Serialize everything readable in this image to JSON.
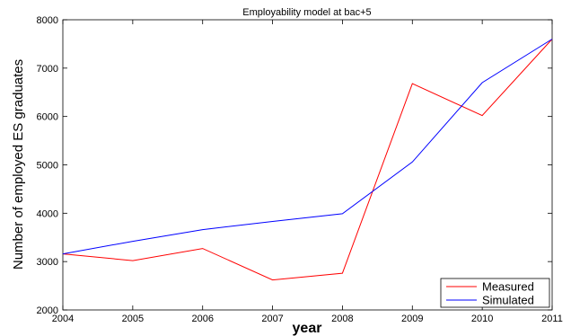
{
  "chart_data": {
    "type": "line",
    "title": "Employability model at bac+5",
    "xlabel": "year",
    "ylabel": "Number of employed ES graduates",
    "x": [
      2004,
      2005,
      2006,
      2007,
      2008,
      2009,
      2010,
      2011
    ],
    "xlim": [
      2004,
      2011
    ],
    "ylim": [
      2000,
      8000
    ],
    "xticks": [
      "2004",
      "2005",
      "2006",
      "2007",
      "2008",
      "2009",
      "2010",
      "2011"
    ],
    "yticks": [
      "2000",
      "3000",
      "4000",
      "5000",
      "6000",
      "7000",
      "8000"
    ],
    "grid": false,
    "legend_position": "bottom-right",
    "series": [
      {
        "name": "Measured",
        "color": "#ff0000",
        "values": [
          3160,
          3020,
          3270,
          2620,
          2760,
          6680,
          6020,
          7600
        ]
      },
      {
        "name": "Simulated",
        "color": "#0000ff",
        "values": [
          3160,
          3420,
          3660,
          3830,
          3990,
          5060,
          6700,
          7600
        ]
      }
    ]
  }
}
